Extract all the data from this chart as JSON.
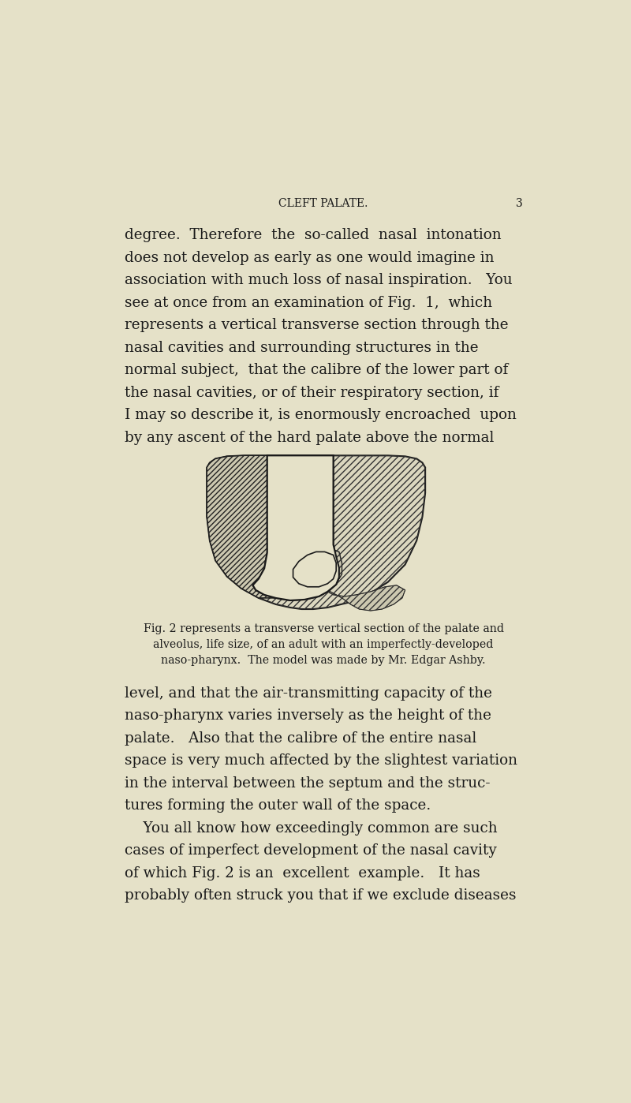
{
  "background_color": "#e8e4cc",
  "page_color": "#e5e1c8",
  "header_text": "CLEFT PALATE.",
  "page_number": "3",
  "header_fontsize": 10,
  "body_text_lines": [
    "degree.  Therefore  the  so-called  nasal  intonation",
    "does not develop as early as one would imagine in",
    "association with much loss of nasal inspiration.   You",
    "see at once from an examination of Fig.  1,  which",
    "represents a vertical transverse section through the",
    "nasal cavities and surrounding structures in the",
    "normal subject,  that the calibre of the lower part of",
    "the nasal cavities, or of their respiratory section, if",
    "I may so describe it, is enormously encroached  upon",
    "by any ascent of the hard palate above the normal"
  ],
  "figure_caption_lines": [
    "Fig. 2 represents a transverse vertical section of the palate and",
    "alveolus, life size, of an adult with an imperfectly-developed",
    "naso-pharynx.  The model was made by Mr. Edgar Ashby."
  ],
  "body_text2_lines": [
    "level, and that the air-transmitting capacity of the",
    "naso-pharynx varies inversely as the height of the",
    "palate.   Also that the calibre of the entire nasal",
    "space is very much affected by the slightest variation",
    "in the interval between the septum and the struc-",
    "tures forming the outer wall of the space.",
    "    You all know how exceedingly common are such",
    "cases of imperfect development of the nasal cavity",
    "of which Fig. 2 is an  excellent  example.   It has",
    "probably often struck you that if we exclude diseases"
  ],
  "text_color": "#1a1a1a",
  "page_color_hex": "#e5e1c8"
}
